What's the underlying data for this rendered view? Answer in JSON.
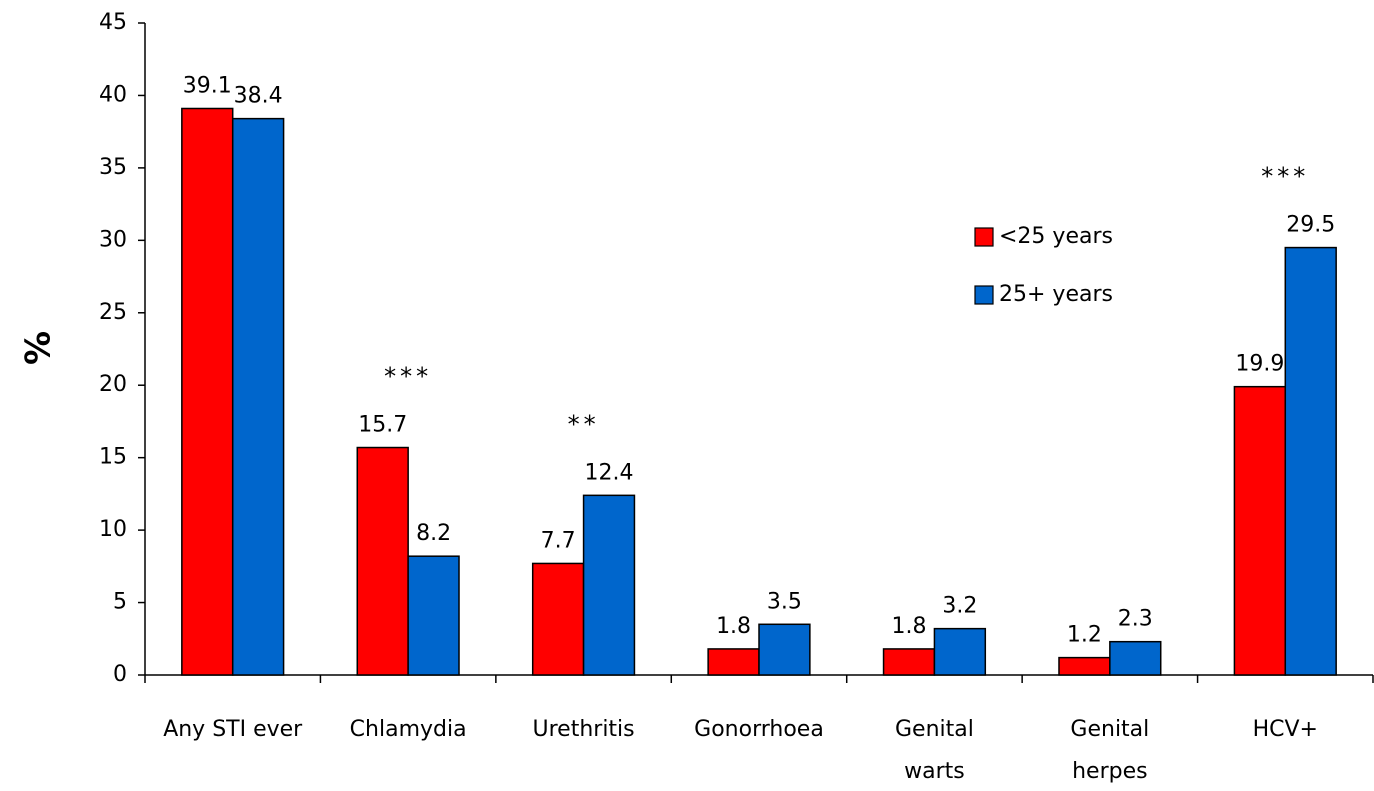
{
  "chart_data": {
    "type": "bar",
    "y_label": "%",
    "categories": [
      "Any STI ever",
      "Chlamydia",
      "Urethritis",
      "Gonorrhoea",
      "Genital\nwarts",
      "Genital\nherpes",
      "HCV+"
    ],
    "series": [
      {
        "name": "<25 years",
        "color": "#ff0000",
        "values": [
          39.1,
          15.7,
          7.7,
          1.8,
          1.8,
          1.2,
          19.9
        ]
      },
      {
        "name": "25+ years",
        "color": "#0066cc",
        "values": [
          38.4,
          8.2,
          12.4,
          3.5,
          3.2,
          2.3,
          29.5
        ]
      }
    ],
    "significance": [
      null,
      "***",
      "**",
      null,
      null,
      null,
      "***"
    ],
    "ylim": [
      0,
      45
    ],
    "yticks": [
      0,
      5,
      10,
      15,
      20,
      25,
      30,
      35,
      40,
      45
    ],
    "grid": false,
    "legend": "center-right"
  }
}
